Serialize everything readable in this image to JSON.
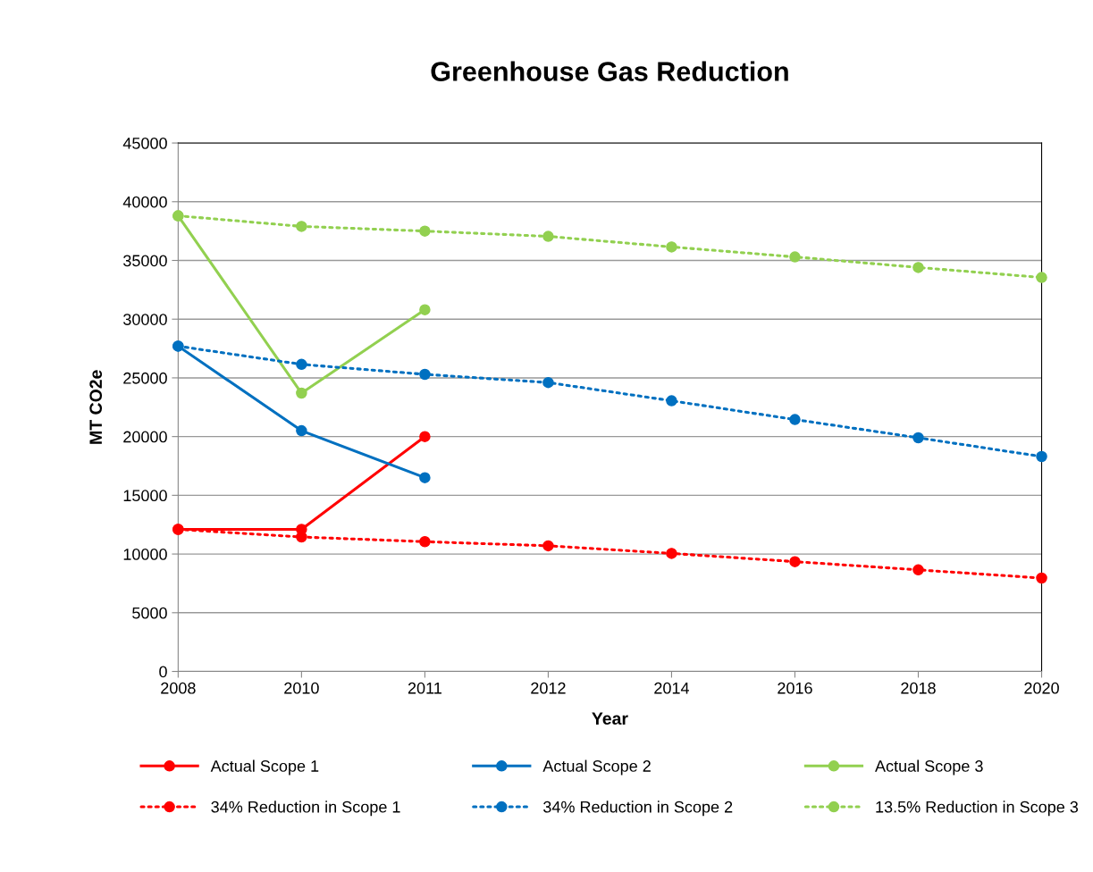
{
  "chart_data": {
    "type": "line",
    "title": "Greenhouse Gas Reduction",
    "xlabel": "Year",
    "ylabel": "MT CO2e",
    "categories": [
      "2008",
      "2010",
      "2011",
      "2012",
      "2014",
      "2016",
      "2018",
      "2020"
    ],
    "ylim": [
      0,
      45000
    ],
    "yticks": [
      0,
      5000,
      10000,
      15000,
      20000,
      25000,
      30000,
      35000,
      40000,
      45000
    ],
    "grid": "y",
    "legend": "bottom",
    "marker": "circle",
    "series": [
      {
        "name": "Actual Scope 1",
        "color": "#ff0000",
        "line_style": "solid",
        "values": [
          12100,
          12100,
          20000,
          null,
          null,
          null,
          null,
          null
        ]
      },
      {
        "name": "Actual Scope 2",
        "color": "#0070c0",
        "line_style": "solid",
        "values": [
          27700,
          20500,
          16500,
          null,
          null,
          null,
          null,
          null
        ]
      },
      {
        "name": "Actual Scope 3",
        "color": "#92d050",
        "line_style": "solid",
        "values": [
          38800,
          23700,
          30800,
          null,
          null,
          null,
          null,
          null
        ]
      },
      {
        "name": "34% Reduction in Scope 1",
        "color": "#ff0000",
        "line_style": "dotted",
        "values": [
          12100,
          11450,
          11050,
          10700,
          10050,
          9350,
          8650,
          7950
        ]
      },
      {
        "name": "34% Reduction in Scope 2",
        "color": "#0070c0",
        "line_style": "dotted",
        "values": [
          27700,
          26150,
          25300,
          24600,
          23050,
          21450,
          19900,
          18300
        ]
      },
      {
        "name": "13.5% Reduction in Scope 3",
        "color": "#92d050",
        "line_style": "dotted",
        "values": [
          38800,
          37900,
          37500,
          37050,
          36150,
          35300,
          34400,
          33550
        ]
      }
    ]
  }
}
